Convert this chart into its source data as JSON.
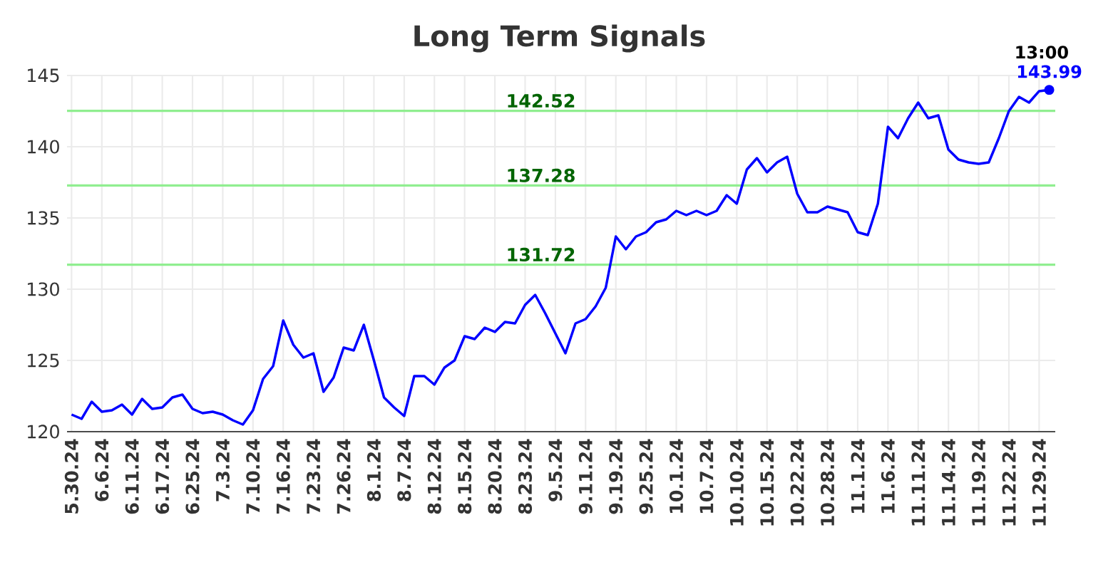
{
  "chart_data": {
    "type": "line",
    "title": "Long Term Signals",
    "categories": [
      "5.30.24",
      null,
      null,
      "6.6.24",
      null,
      null,
      "6.11.24",
      null,
      null,
      "6.17.24",
      null,
      null,
      "6.25.24",
      null,
      null,
      "7.3.24",
      null,
      null,
      "7.10.24",
      null,
      null,
      "7.16.24",
      null,
      null,
      "7.23.24",
      null,
      null,
      "7.26.24",
      null,
      null,
      "8.1.24",
      null,
      null,
      "8.7.24",
      null,
      null,
      "8.12.24",
      null,
      null,
      "8.15.24",
      null,
      null,
      "8.20.24",
      null,
      null,
      "8.23.24",
      null,
      null,
      "9.5.24",
      null,
      null,
      "9.11.24",
      null,
      null,
      "9.19.24",
      null,
      null,
      "9.25.24",
      null,
      null,
      "10.1.24",
      null,
      null,
      "10.7.24",
      null,
      null,
      "10.10.24",
      null,
      null,
      "10.15.24",
      null,
      null,
      "10.22.24",
      null,
      null,
      "10.28.24",
      null,
      null,
      "11.1.24",
      null,
      null,
      "11.6.24",
      null,
      null,
      "11.11.24",
      null,
      null,
      "11.14.24",
      null,
      null,
      "11.19.24",
      null,
      null,
      "11.22.24",
      null,
      null,
      "11.29.24",
      null
    ],
    "series": [
      {
        "color": "#0000ff",
        "values": [
          121.2,
          120.9,
          122.1,
          121.4,
          121.5,
          121.9,
          121.2,
          122.3,
          121.6,
          121.7,
          122.4,
          122.6,
          121.6,
          121.3,
          121.4,
          121.2,
          120.8,
          120.5,
          121.5,
          123.7,
          124.6,
          127.8,
          126.1,
          125.2,
          125.5,
          122.8,
          123.8,
          125.9,
          125.7,
          127.5,
          125.0,
          122.4,
          121.7,
          121.1,
          123.9,
          123.9,
          123.3,
          124.5,
          125.0,
          126.7,
          126.5,
          127.3,
          127.0,
          127.7,
          127.6,
          128.9,
          129.6,
          128.3,
          126.9,
          125.5,
          127.6,
          127.9,
          128.8,
          130.1,
          133.7,
          132.8,
          133.7,
          134.0,
          134.7,
          134.9,
          135.5,
          135.2,
          135.5,
          135.2,
          135.5,
          136.6,
          136.0,
          138.4,
          139.2,
          138.2,
          138.9,
          139.3,
          136.7,
          135.4,
          135.4,
          135.8,
          135.6,
          135.4,
          134.0,
          133.8,
          136.0,
          141.4,
          140.6,
          142.0,
          143.1,
          142.0,
          142.2,
          139.8,
          139.1,
          138.9,
          138.8,
          138.9,
          140.6,
          142.5,
          143.5,
          143.1,
          143.9,
          143.99
        ]
      }
    ],
    "ylim": [
      120,
      145
    ],
    "yticks": [
      120,
      125,
      130,
      135,
      140,
      145
    ],
    "grid": true,
    "ref_lines": [
      {
        "axis": "y",
        "value": 131.72,
        "label": "131.72",
        "color": "#90ee90"
      },
      {
        "axis": "y",
        "value": 137.28,
        "label": "137.28",
        "color": "#90ee90"
      },
      {
        "axis": "y",
        "value": 142.52,
        "label": "142.52",
        "color": "#90ee90"
      }
    ],
    "annotations": [
      "13:00",
      {
        "text": "143.99",
        "y": 143.99
      }
    ]
  }
}
